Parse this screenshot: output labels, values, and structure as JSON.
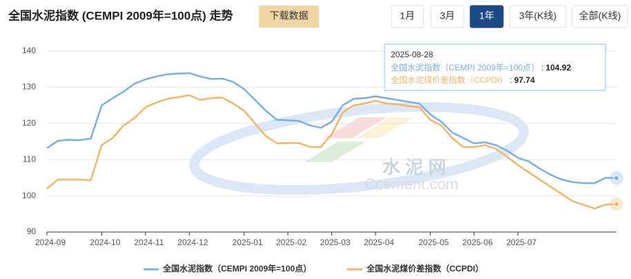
{
  "header": {
    "title": "全国水泥指数 (CEMPI 2009年=100点) 走势",
    "download": "下载数据",
    "ranges": [
      "1月",
      "3月",
      "1年",
      "3年(K线)",
      "全部(K线)"
    ],
    "active": 2
  },
  "chart_data": {
    "type": "line",
    "categories": [
      "2024-09",
      null,
      null,
      null,
      null,
      "2024-10",
      null,
      null,
      null,
      "2024-11",
      null,
      null,
      null,
      "2024-12",
      null,
      null,
      null,
      null,
      "2025-01",
      null,
      null,
      null,
      "2025-02",
      null,
      null,
      null,
      "2025-03",
      null,
      null,
      null,
      "2025-04",
      null,
      null,
      null,
      null,
      "2025-05",
      null,
      null,
      null,
      "2025-06",
      null,
      null,
      null,
      "2025-07",
      null,
      null,
      null,
      null,
      null,
      null,
      null,
      null,
      null
    ],
    "series": [
      {
        "name": "全国水泥指数（CEMPI 2009年=100点）",
        "color": "#7aafe2",
        "values": [
          113.2,
          115.2,
          115.5,
          115.4,
          115.8,
          125.0,
          127.0,
          128.8,
          131.0,
          132.2,
          133.0,
          133.6,
          133.8,
          133.9,
          133.0,
          132.3,
          132.4,
          131.5,
          129.5,
          126.5,
          123.5,
          121.0,
          120.9,
          120.7,
          119.5,
          118.8,
          120.5,
          125.0,
          126.8,
          127.0,
          127.5,
          127.0,
          126.5,
          126.0,
          125.5,
          122.5,
          120.5,
          117.5,
          116.0,
          114.5,
          114.8,
          114.0,
          112.5,
          110.5,
          109.5,
          107.5,
          105.8,
          104.5,
          103.8,
          103.5,
          103.5,
          105.0,
          104.92
        ]
      },
      {
        "name": "全国水泥煤价差指数（CCPDI）",
        "color": "#f5b46a",
        "values": [
          102.0,
          104.5,
          104.5,
          104.5,
          104.3,
          114.0,
          116.0,
          119.5,
          121.5,
          124.5,
          125.8,
          126.8,
          127.3,
          127.8,
          126.5,
          127.0,
          127.2,
          125.5,
          123.5,
          120.0,
          116.5,
          114.5,
          114.6,
          114.6,
          113.5,
          113.5,
          117.0,
          123.0,
          125.0,
          125.5,
          126.3,
          125.5,
          125.3,
          124.8,
          124.5,
          121.0,
          119.5,
          116.0,
          113.5,
          113.5,
          114.0,
          113.0,
          110.8,
          108.5,
          106.5,
          104.5,
          102.5,
          100.5,
          98.5,
          97.5,
          96.5,
          97.6,
          97.74
        ]
      }
    ],
    "ylim": [
      90,
      140
    ],
    "yticks": [
      90,
      100,
      110,
      120,
      130,
      140
    ],
    "grid": true,
    "tooltip": {
      "date": "2025-08-28",
      "separator": ":"
    },
    "watermark": [
      "水 泥 网",
      "Ccement.com"
    ]
  }
}
